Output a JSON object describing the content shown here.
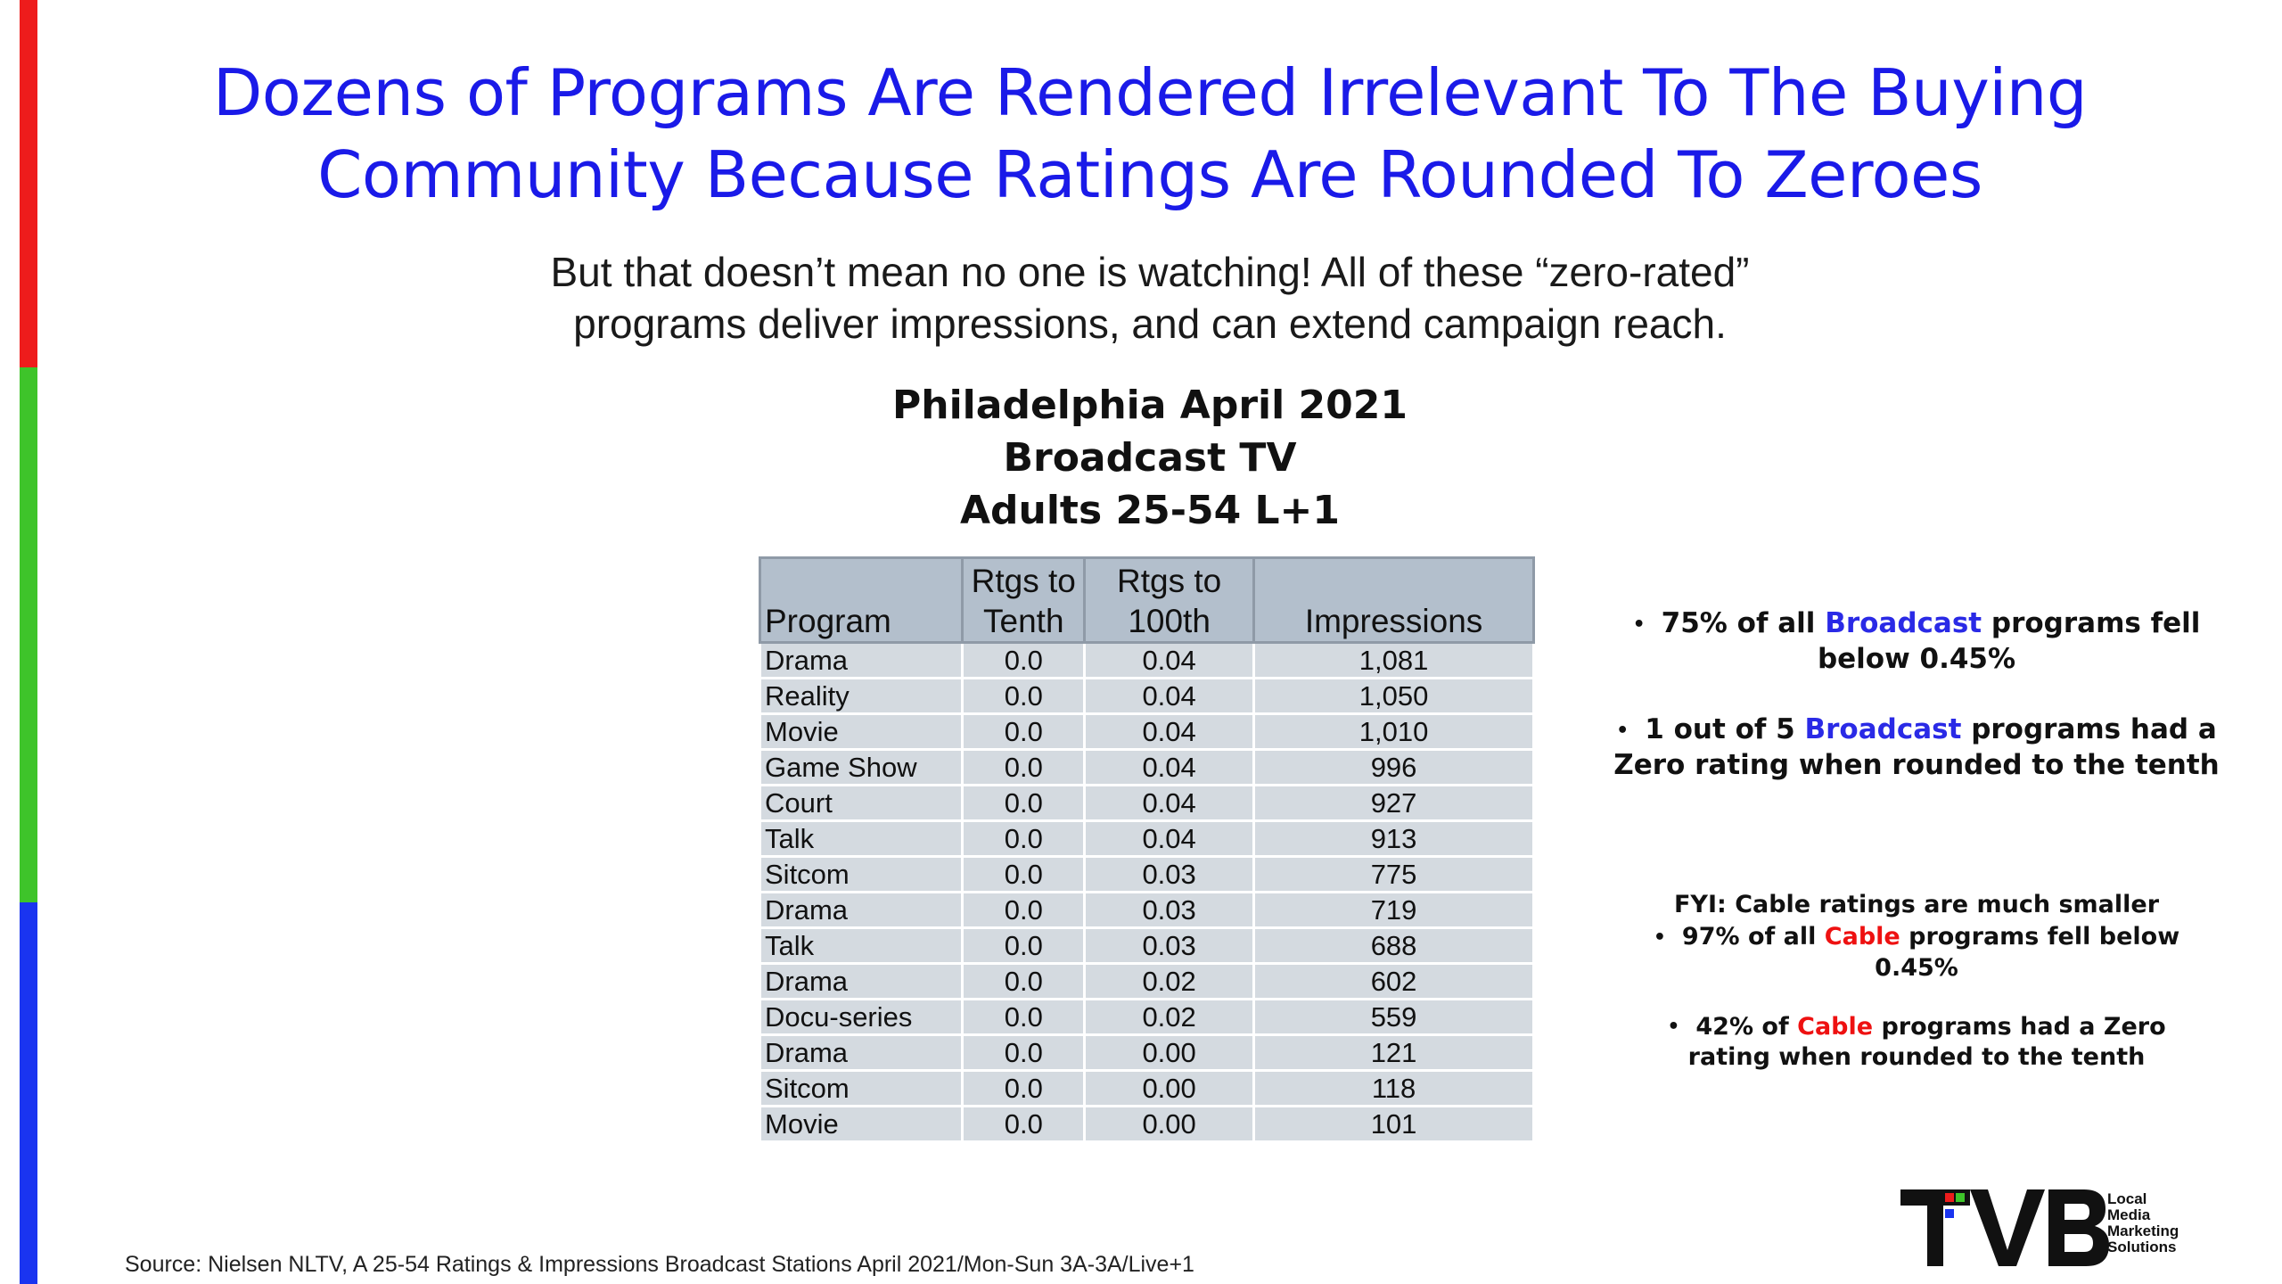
{
  "title": {
    "line1": "Dozens of Programs Are Rendered Irrelevant To The Buying",
    "line2": "Community Because Ratings Are Rounded To Zeroes"
  },
  "subtitle": {
    "line1": "But that doesn’t mean no one is watching! All of these “zero-rated”",
    "line2": "programs deliver impressions, and can extend campaign reach."
  },
  "table_title": {
    "line1": "Philadelphia April 2021",
    "line2": "Broadcast TV",
    "line3": "Adults 25-54 L+1"
  },
  "table": {
    "headers": {
      "program": "Program",
      "tenth_line1": "Rtgs to",
      "tenth_line2": "Tenth",
      "hundredth_line1": "Rtgs to",
      "hundredth_line2": "100th",
      "impressions": "Impressions"
    },
    "rows": [
      {
        "program": "Drama",
        "tenth": "0.0",
        "hundredth": "0.04",
        "impressions": "1,081"
      },
      {
        "program": "Reality",
        "tenth": "0.0",
        "hundredth": "0.04",
        "impressions": "1,050"
      },
      {
        "program": "Movie",
        "tenth": "0.0",
        "hundredth": "0.04",
        "impressions": "1,010"
      },
      {
        "program": "Game Show",
        "tenth": "0.0",
        "hundredth": "0.04",
        "impressions": "996"
      },
      {
        "program": "Court",
        "tenth": "0.0",
        "hundredth": "0.04",
        "impressions": "927"
      },
      {
        "program": "Talk",
        "tenth": "0.0",
        "hundredth": "0.04",
        "impressions": "913"
      },
      {
        "program": "Sitcom",
        "tenth": "0.0",
        "hundredth": "0.03",
        "impressions": "775"
      },
      {
        "program": "Drama",
        "tenth": "0.0",
        "hundredth": "0.03",
        "impressions": "719"
      },
      {
        "program": "Talk",
        "tenth": "0.0",
        "hundredth": "0.03",
        "impressions": "688"
      },
      {
        "program": "Drama",
        "tenth": "0.0",
        "hundredth": "0.02",
        "impressions": "602"
      },
      {
        "program": "Docu-series",
        "tenth": "0.0",
        "hundredth": "0.02",
        "impressions": "559"
      },
      {
        "program": "Drama",
        "tenth": "0.0",
        "hundredth": "0.00",
        "impressions": "121"
      },
      {
        "program": "Sitcom",
        "tenth": "0.0",
        "hundredth": "0.00",
        "impressions": "118"
      },
      {
        "program": "Movie",
        "tenth": "0.0",
        "hundredth": "0.00",
        "impressions": "101"
      }
    ]
  },
  "bullets": {
    "b1": {
      "pre": "75% of all ",
      "hl": "Broadcast",
      "post": " programs fell",
      "line2": "below 0.45%"
    },
    "b2": {
      "pre": "1 out of 5 ",
      "hl": "Broadcast",
      "post": " programs had a",
      "line2": "Zero rating when rounded to the tenth"
    }
  },
  "fyi": {
    "heading": "FYI: Cable ratings are much smaller",
    "i1": {
      "pre": "97% of all ",
      "hl": "Cable",
      "post": " programs fell below",
      "line2": "0.45%"
    },
    "i2": {
      "pre": "42% of ",
      "hl": "Cable",
      "post": " programs had a Zero",
      "line2": "rating when rounded to the tenth"
    }
  },
  "source": "Source: Nielsen NLTV, A 25-54 Ratings & Impressions Broadcast Stations April 2021/Mon-Sun 3A-3A/Live+1",
  "logo": {
    "text": "TVB",
    "sub1": "Local",
    "sub2": "Media",
    "sub3": "Marketing",
    "sub4": "Solutions"
  },
  "colors": {
    "title": "#1a1ae8",
    "bar_red": "#ee1c1c",
    "bar_green": "#3ec42a",
    "bar_blue": "#1a34f0",
    "broadcast": "#2a2ae6",
    "cable": "#ee1111"
  }
}
